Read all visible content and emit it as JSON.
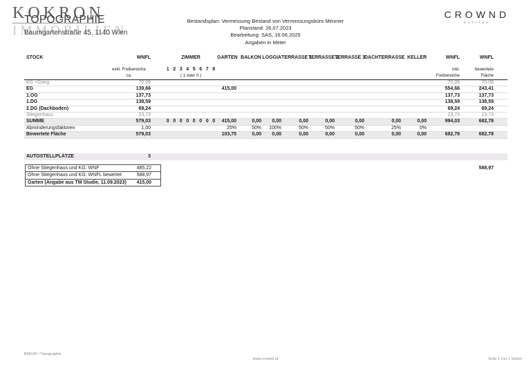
{
  "logo": {
    "brand": "KOKRON",
    "brand_sub": "IMMOBILIEN",
    "doc_title": "TOPOGRAPHIE",
    "address": "Baumgartenstraße 45, 1140 Wien"
  },
  "meta_lines": [
    "Bestandsplan: Vermessung Bestand  von Vermessungsbüro Meixner",
    "Planstand: 26.07.2023",
    "Bearbeitung: SAS, 16.06.2025",
    "Angaben in Meter"
  ],
  "crownd": {
    "name": "CROWND",
    "sub": "ESTATES"
  },
  "table": {
    "headers": {
      "stock": "STOCK",
      "wnfl": "WNFL",
      "zimmer": "ZIMMER",
      "garten": "GARTEN",
      "balkon": "BALKON",
      "loggia": "LOGGIA",
      "terrasse1": "TERRASSE 1",
      "terrasse2": "TERRASSE 2",
      "terrasse3": "TERRASSE 3",
      "dachterrasse": "DACHTERRASSE",
      "keller": "KELLER",
      "wnfl_inkl": "WNFL",
      "wnfl_bew": "WNFL",
      "wnfl_sub": [
        "exkl. Freibereiche",
        "ca."
      ],
      "zimmer_digits": [
        "1",
        "2",
        "3",
        "4",
        "5",
        "6",
        "7",
        "8"
      ],
      "zimmer_sub": "( 1 oder 0 )",
      "wnfl_inkl_sub": [
        "inkl.",
        "Freibereiche"
      ],
      "wnfl_bew_sub": [
        "bewertete",
        "Fläche"
      ]
    },
    "rows": [
      {
        "label": "KG +Gang",
        "style": "gray",
        "wnfl": "70,08",
        "inkl": "70,08",
        "bew": "70,08"
      },
      {
        "label": "EG",
        "style": "bold",
        "wnfl": "139,66",
        "garten": "415,00",
        "inkl": "554,66",
        "bew": "243,41"
      },
      {
        "label": "1.OG",
        "style": "bold",
        "wnfl": "137,73",
        "inkl": "137,73",
        "bew": "137,73"
      },
      {
        "label": "1.DG",
        "style": "bold",
        "wnfl": "138,59",
        "inkl": "138,59",
        "bew": "138,59"
      },
      {
        "label": "2.DG (Dachboden)",
        "style": "bold",
        "wnfl": "69,24",
        "inkl": "69,24",
        "bew": "69,24"
      },
      {
        "label": "Stiegenhaus",
        "style": "gray",
        "wnfl": "23,73",
        "inkl": "23,73",
        "bew": "23,73"
      },
      {
        "label": "SUMME",
        "style": "bold striped",
        "wnfl": "579,03",
        "zimmer": [
          "0",
          "0",
          "0",
          "0",
          "0",
          "0",
          "0",
          "0"
        ],
        "garten": "415,00",
        "balkon": "0,00",
        "loggia": "0,00",
        "t1": "0,00",
        "t2": "0,00",
        "t3": "0,00",
        "dach": "0,00",
        "keller": "0,00",
        "inkl": "994,03",
        "bew": "682,78"
      },
      {
        "label": "Abminderungsfaktoren",
        "style": "normal",
        "wnfl": "1,00",
        "garten": "25%",
        "balkon": "50%",
        "loggia": "100%",
        "t1": "50%",
        "t2": "50%",
        "t3": "50%",
        "dach": "25%",
        "keller": "0%"
      },
      {
        "label": "Bewertete Fläche",
        "style": "bold striped",
        "wnfl": "579,03",
        "garten": "103,75",
        "balkon": "0,00",
        "loggia": "0,00",
        "t1": "0,00",
        "t2": "0,00",
        "t3": "0,00",
        "dach": "0,00",
        "keller": "0,00",
        "inkl": "682,78",
        "bew": "682,78"
      }
    ]
  },
  "autostellplaetze": {
    "label": "AUTOSTELLPLÄTZE",
    "value": "3"
  },
  "summary_box": {
    "rows": [
      {
        "label": "Ohne Stiegenhaus und KG: WNF",
        "value": "485,22",
        "bold": false
      },
      {
        "label": "Ohne Stiegenhaus und KG: WNFL bewertet",
        "value": "588,97",
        "bold": false
      },
      {
        "label": "Garten (Angabe aus TM Studie, 11.09.2023)",
        "value": "415,00",
        "bold": true
      }
    ]
  },
  "floating_total": "588,97",
  "footer": {
    "left": "BMG45 I Topographie",
    "center": "www.crownd.at",
    "right": "Seite 1 von 1 Seiten"
  }
}
